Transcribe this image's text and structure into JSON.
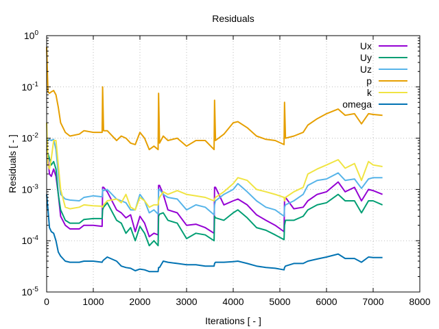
{
  "chart_data": {
    "type": "line",
    "title": "Residuals",
    "xlabel": "Iterations [ - ]",
    "ylabel": "Residuals [ - ]",
    "xlim": [
      0,
      8000
    ],
    "ylim": [
      1e-05,
      1
    ],
    "yscale": "log",
    "grid": true,
    "legend_position": "top-right",
    "x_ticks": [
      "0",
      "1000",
      "2000",
      "3000",
      "4000",
      "5000",
      "6000",
      "7000",
      "8000"
    ],
    "y_ticks": [
      {
        "base": "10",
        "exp": "0"
      },
      {
        "base": "10",
        "exp": "-1"
      },
      {
        "base": "10",
        "exp": "-2"
      },
      {
        "base": "10",
        "exp": "-3"
      },
      {
        "base": "10",
        "exp": "-4"
      },
      {
        "base": "10",
        "exp": "-5"
      }
    ],
    "x": [
      0,
      30,
      60,
      100,
      150,
      200,
      250,
      300,
      400,
      500,
      700,
      800,
      1000,
      1190,
      1200,
      1220,
      1300,
      1500,
      1600,
      1700,
      1800,
      1900,
      2000,
      2100,
      2200,
      2300,
      2390,
      2400,
      2420,
      2500,
      2600,
      2800,
      3000,
      3200,
      3400,
      3590,
      3600,
      3620,
      3800,
      4000,
      4100,
      4300,
      4500,
      4700,
      4900,
      5090,
      5100,
      5120,
      5300,
      5500,
      5600,
      5800,
      6000,
      6250,
      6400,
      6600,
      6750,
      6900,
      7000,
      7200
    ],
    "series": [
      {
        "name": "Ux",
        "color": "#9400d3",
        "values": [
          0.005,
          0.004,
          0.002,
          0.0018,
          0.0025,
          0.0018,
          0.0008,
          0.0003,
          0.0002,
          0.00017,
          0.00017,
          0.0002,
          0.0002,
          0.00019,
          0.0011,
          0.0011,
          0.0009,
          0.0004,
          0.00035,
          0.00028,
          0.00032,
          0.00015,
          0.0003,
          0.00022,
          0.00012,
          0.00014,
          0.00013,
          0.0012,
          0.0012,
          0.0008,
          0.0004,
          0.00035,
          0.0002,
          0.00021,
          0.00018,
          0.00014,
          0.0011,
          0.0011,
          0.0005,
          0.0006,
          0.00065,
          0.0005,
          0.00032,
          0.00025,
          0.0002,
          0.00015,
          0.0006,
          0.0007,
          0.00042,
          0.00045,
          0.0006,
          0.0008,
          0.0009,
          0.0014,
          0.0009,
          0.0011,
          0.0006,
          0.001,
          0.00095,
          0.0008
        ]
      },
      {
        "name": "Uy",
        "color": "#009e73",
        "values": [
          0.006,
          0.005,
          0.004,
          0.003,
          0.0035,
          0.0025,
          0.0008,
          0.0004,
          0.00025,
          0.00022,
          0.00022,
          0.00026,
          0.00027,
          0.00027,
          0.0004,
          0.00045,
          0.00055,
          0.00025,
          0.00022,
          0.00014,
          0.00018,
          0.0001,
          0.00019,
          0.00014,
          8e-05,
          0.0001,
          8e-05,
          0.0003,
          0.00033,
          0.00035,
          0.00025,
          0.00022,
          0.00011,
          0.00014,
          0.00013,
          0.0001,
          0.0003,
          0.00028,
          0.00025,
          0.00035,
          0.0004,
          0.00028,
          0.00018,
          0.00016,
          0.00013,
          0.000105,
          0.0002,
          0.00025,
          0.00025,
          0.0003,
          0.0004,
          0.0005,
          0.00055,
          0.0008,
          0.0006,
          0.0006,
          0.00035,
          0.0006,
          0.0006,
          0.0005
        ]
      },
      {
        "name": "Uz",
        "color": "#56b4e9",
        "values": [
          0.01,
          0.009,
          0.0095,
          0.009,
          0.0095,
          0.006,
          0.002,
          0.0008,
          0.00065,
          0.00062,
          0.0006,
          0.0007,
          0.00075,
          0.00072,
          0.001,
          0.00095,
          0.001,
          0.00065,
          0.0006,
          0.00055,
          0.0004,
          0.0004,
          0.0008,
          0.0006,
          0.00035,
          0.0004,
          0.00033,
          0.001,
          0.001,
          0.0008,
          0.0007,
          0.00065,
          0.0004,
          0.0005,
          0.00045,
          0.00032,
          0.0005,
          0.0006,
          0.0008,
          0.001,
          0.0013,
          0.0009,
          0.0006,
          0.00045,
          0.0004,
          0.0003,
          0.00045,
          0.0005,
          0.0006,
          0.0008,
          0.0012,
          0.0015,
          0.0016,
          0.0021,
          0.0015,
          0.0016,
          0.00105,
          0.0016,
          0.0017,
          0.0017
        ]
      },
      {
        "name": "p",
        "color": "#e69f00",
        "values": [
          0.6,
          0.08,
          0.075,
          0.08,
          0.085,
          0.07,
          0.04,
          0.02,
          0.013,
          0.011,
          0.012,
          0.014,
          0.013,
          0.013,
          0.1,
          0.014,
          0.014,
          0.009,
          0.011,
          0.01,
          0.008,
          0.0075,
          0.013,
          0.01,
          0.006,
          0.007,
          0.006,
          0.075,
          0.008,
          0.011,
          0.009,
          0.01,
          0.007,
          0.009,
          0.009,
          0.006,
          0.055,
          0.009,
          0.012,
          0.02,
          0.021,
          0.016,
          0.011,
          0.0095,
          0.009,
          0.0075,
          0.05,
          0.01,
          0.011,
          0.013,
          0.018,
          0.024,
          0.03,
          0.037,
          0.028,
          0.03,
          0.019,
          0.03,
          0.029,
          0.028
        ]
      },
      {
        "name": "k",
        "color": "#f0e442",
        "values": [
          0.02,
          0.003,
          0.0025,
          0.004,
          0.009,
          0.009,
          0.003,
          0.001,
          0.00045,
          0.00042,
          0.00045,
          0.0005,
          0.00048,
          0.00047,
          0.00045,
          0.0005,
          0.0006,
          0.00065,
          0.00055,
          0.0008,
          0.00045,
          0.0004,
          0.0007,
          0.0006,
          0.00045,
          0.0005,
          0.0005,
          0.0006,
          0.0007,
          0.0009,
          0.0008,
          0.00095,
          0.0008,
          0.00075,
          0.0007,
          0.0006,
          0.00065,
          0.0007,
          0.0009,
          0.0013,
          0.0017,
          0.0015,
          0.001,
          0.0009,
          0.0008,
          0.0007,
          0.0006,
          0.0007,
          0.0009,
          0.0011,
          0.002,
          0.0025,
          0.003,
          0.0038,
          0.0026,
          0.0032,
          0.0015,
          0.0035,
          0.003,
          0.0028
        ]
      },
      {
        "name": "omega",
        "color": "#0072b2",
        "values": [
          0.0008,
          0.0004,
          0.00018,
          0.00015,
          0.00014,
          0.0001,
          6e-05,
          5e-05,
          4e-05,
          3.8e-05,
          3.8e-05,
          4e-05,
          4e-05,
          3.8e-05,
          4e-05,
          4.2e-05,
          4.8e-05,
          4e-05,
          3.2e-05,
          3e-05,
          2.9e-05,
          2.6e-05,
          2.8e-05,
          2.7e-05,
          2.5e-05,
          2.5e-05,
          2.5e-05,
          3e-05,
          3e-05,
          4e-05,
          3.8e-05,
          3.6e-05,
          3.4e-05,
          3.4e-05,
          3.2e-05,
          3.2e-05,
          3.6e-05,
          3.8e-05,
          3.8e-05,
          3.9e-05,
          4e-05,
          3.6e-05,
          3.2e-05,
          3e-05,
          2.9e-05,
          2.7e-05,
          3e-05,
          3.2e-05,
          3.6e-05,
          3.6e-05,
          4e-05,
          4.4e-05,
          4.8e-05,
          5.5e-05,
          4.5e-05,
          4.5e-05,
          3.8e-05,
          4.8e-05,
          4.7e-05,
          4.7e-05
        ]
      }
    ]
  }
}
